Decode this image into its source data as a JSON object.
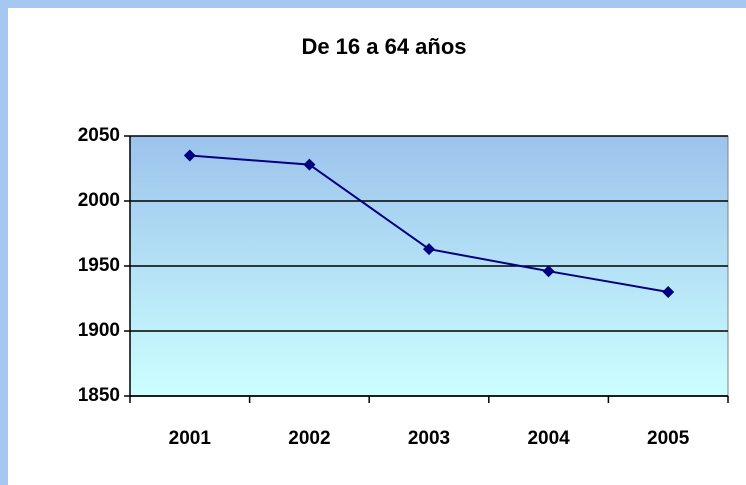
{
  "chart_data": {
    "type": "line",
    "title": "De 16 a 64 años",
    "categories": [
      "2001",
      "2002",
      "2003",
      "2004",
      "2005"
    ],
    "values": [
      2035,
      2028,
      1963,
      1946,
      1930
    ],
    "color": "#000080",
    "ylim": [
      1850,
      2050
    ],
    "yticks": [
      1850,
      1900,
      1950,
      2000,
      2050
    ],
    "grid": true
  }
}
